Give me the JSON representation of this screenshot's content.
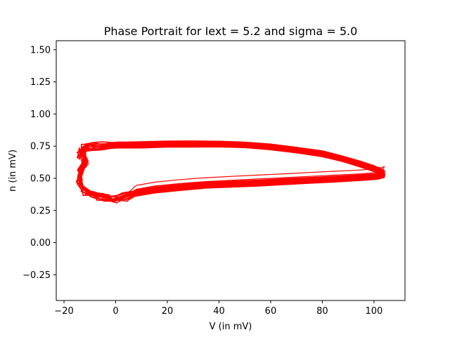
{
  "chart_data": {
    "type": "line",
    "title": "Phase Portrait for Iext = 5.2 and sigma = 5.0",
    "xlabel": "V (in mV)",
    "ylabel": "n (in mV)",
    "xlim": [
      -23,
      112
    ],
    "ylim": [
      -0.45,
      1.57
    ],
    "xticks": [
      -20,
      0,
      20,
      40,
      60,
      80,
      100
    ],
    "yticks": [
      -0.25,
      0.0,
      0.25,
      0.5,
      0.75,
      1.0,
      1.25,
      1.5
    ],
    "xtick_labels": [
      "−20",
      "0",
      "20",
      "40",
      "60",
      "80",
      "100"
    ],
    "ytick_labels": [
      "−0.25",
      "0.00",
      "0.25",
      "0.50",
      "0.75",
      "1.00",
      "1.25",
      "1.50"
    ],
    "grid": false,
    "series": [
      {
        "color": "#ff0000",
        "x": [
          -13,
          -13.5,
          -12,
          -10,
          -6,
          0,
          10,
          20,
          30,
          40,
          50,
          60,
          70,
          80,
          88,
          95,
          100,
          103,
          104,
          101,
          95,
          85,
          75,
          65,
          55,
          45,
          35,
          25,
          15,
          8,
          3,
          0,
          -3,
          -6,
          -9,
          -11,
          -12.5,
          -14,
          -13.5,
          -12,
          -13
        ],
        "y": [
          0.72,
          0.68,
          0.74,
          0.745,
          0.75,
          0.755,
          0.76,
          0.765,
          0.768,
          0.767,
          0.76,
          0.745,
          0.72,
          0.69,
          0.65,
          0.61,
          0.575,
          0.55,
          0.53,
          0.515,
          0.505,
          0.495,
          0.485,
          0.475,
          0.465,
          0.455,
          0.445,
          0.43,
          0.41,
          0.385,
          0.355,
          0.34,
          0.345,
          0.355,
          0.37,
          0.39,
          0.42,
          0.47,
          0.55,
          0.62,
          0.72
        ]
      }
    ]
  }
}
